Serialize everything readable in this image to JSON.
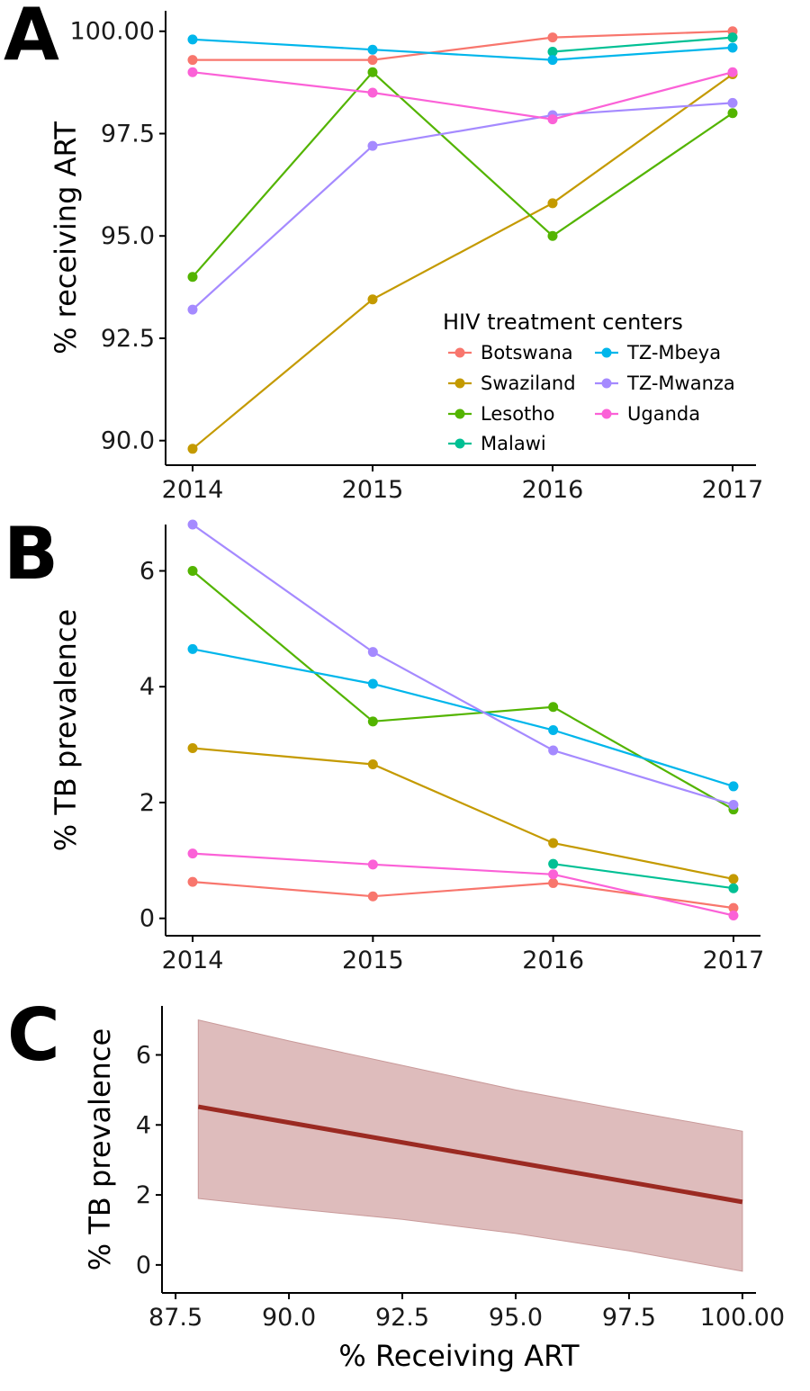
{
  "panels": {
    "a": "A",
    "b": "B",
    "c": "C"
  },
  "legend": {
    "title": "HIV treatment centers",
    "columns": [
      [
        "Botswana",
        "Swaziland",
        "Lesotho",
        "Malawi"
      ],
      [
        "TZ-Mbeya",
        "TZ-Mwanza",
        "Uganda"
      ]
    ]
  },
  "colors": {
    "Botswana": "#F8766D",
    "Swaziland": "#C49A00",
    "Lesotho": "#53B400",
    "Malawi": "#00C094",
    "TZ-Mbeya": "#00B6EB",
    "TZ-Mwanza": "#A58AFF",
    "Uganda": "#FB61D7",
    "fit": "#9B2A22",
    "band": "#D8B0B0"
  },
  "chart_data": [
    {
      "id": "A",
      "type": "line",
      "ylabel": "% receiving ART",
      "x": [
        2014,
        2015,
        2016,
        2017
      ],
      "xticks": [
        "2014",
        "2015",
        "2016",
        "2017"
      ],
      "xlim": [
        2013.85,
        2017.13
      ],
      "ylim": [
        89.4,
        100.5
      ],
      "yticks": [
        90.0,
        92.5,
        95.0,
        97.5,
        100.0
      ],
      "ytick_labels": [
        "90.0",
        "92.5",
        "95.0",
        "97.5",
        "100.00"
      ],
      "grid": false,
      "legend_position": "bottom-right",
      "series": [
        {
          "name": "Botswana",
          "values": [
            99.3,
            99.3,
            99.85,
            100.0
          ]
        },
        {
          "name": "Swaziland",
          "values": [
            89.8,
            93.45,
            95.8,
            98.95
          ]
        },
        {
          "name": "Lesotho",
          "values": [
            94.0,
            99.0,
            95.0,
            98.0
          ]
        },
        {
          "name": "Malawi",
          "values": [
            null,
            null,
            99.5,
            99.85
          ]
        },
        {
          "name": "TZ-Mbeya",
          "values": [
            99.8,
            99.55,
            99.3,
            99.6
          ]
        },
        {
          "name": "TZ-Mwanza",
          "values": [
            93.2,
            97.2,
            97.95,
            98.25
          ]
        },
        {
          "name": "Uganda",
          "values": [
            99.0,
            98.5,
            97.85,
            99.0
          ]
        }
      ]
    },
    {
      "id": "B",
      "type": "line",
      "ylabel": "% TB prevalence",
      "x": [
        2014,
        2015,
        2016,
        2017
      ],
      "xticks": [
        "2014",
        "2015",
        "2016",
        "2017"
      ],
      "xlim": [
        2013.85,
        2017.15
      ],
      "ylim": [
        -0.3,
        6.8
      ],
      "yticks": [
        0,
        2,
        4,
        6
      ],
      "ytick_labels": [
        "0",
        "2",
        "4",
        "6"
      ],
      "grid": false,
      "series": [
        {
          "name": "Botswana",
          "values": [
            0.63,
            0.38,
            0.61,
            0.18
          ]
        },
        {
          "name": "Swaziland",
          "values": [
            2.94,
            2.66,
            1.3,
            0.68
          ]
        },
        {
          "name": "Lesotho",
          "values": [
            6.0,
            3.4,
            3.65,
            1.88
          ]
        },
        {
          "name": "Malawi",
          "values": [
            null,
            null,
            0.94,
            0.52
          ]
        },
        {
          "name": "TZ-Mbeya",
          "values": [
            4.65,
            4.05,
            3.25,
            2.28
          ]
        },
        {
          "name": "TZ-Mwanza",
          "values": [
            6.8,
            4.6,
            2.9,
            1.96
          ]
        },
        {
          "name": "Uganda",
          "values": [
            1.12,
            0.93,
            0.76,
            0.05
          ]
        }
      ]
    },
    {
      "id": "C",
      "type": "area",
      "xlabel": "% Receiving ART",
      "ylabel": "% TB prevalence",
      "xlim": [
        87.2,
        100.3
      ],
      "ylim": [
        -0.8,
        7.4
      ],
      "xticks": [
        87.5,
        90.0,
        92.5,
        95.0,
        97.5,
        100.0
      ],
      "xtick_labels": [
        "87.5",
        "90.0",
        "92.5",
        "95.0",
        "97.5",
        "100.00"
      ],
      "yticks": [
        0,
        2,
        4,
        6
      ],
      "ytick_labels": [
        "0",
        "2",
        "4",
        "6"
      ],
      "grid": false,
      "fit_line": {
        "x": [
          88.0,
          100.0
        ],
        "y": [
          4.52,
          1.8
        ]
      },
      "band": {
        "x": [
          88.0,
          90.0,
          92.5,
          95.0,
          97.5,
          100.0
        ],
        "upper": [
          7.0,
          6.4,
          5.7,
          5.0,
          4.4,
          3.82
        ],
        "lower": [
          1.9,
          1.62,
          1.3,
          0.9,
          0.4,
          -0.18
        ]
      }
    }
  ]
}
